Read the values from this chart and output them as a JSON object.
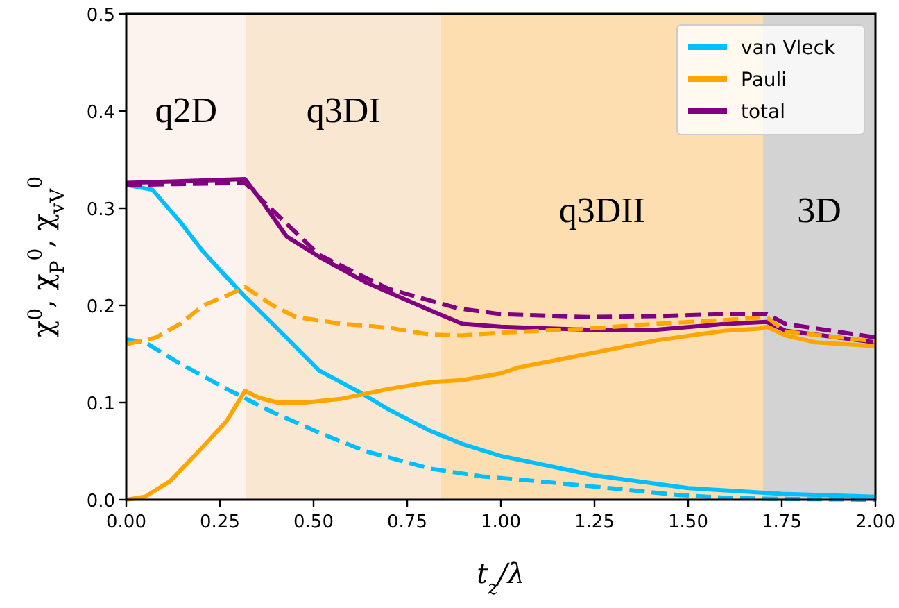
{
  "chart_data": {
    "type": "line",
    "xlabel": "t$_{z}$/λ",
    "ylabel": "χ$^{0}$, χ$_{P}$$^{0}$, χ$_{vV}$$^{0}$",
    "xlim": [
      0,
      2
    ],
    "ylim": [
      0,
      0.5
    ],
    "xticks": [
      {
        "value": 0,
        "label": "0.00"
      },
      {
        "value": 0.25,
        "label": "0.25"
      },
      {
        "value": 0.5,
        "label": "0.50"
      },
      {
        "value": 0.75,
        "label": "0.75"
      },
      {
        "value": 1,
        "label": "1.00"
      },
      {
        "value": 1.25,
        "label": "1.25"
      },
      {
        "value": 1.5,
        "label": "1.50"
      },
      {
        "value": 1.75,
        "label": "1.75"
      },
      {
        "value": 2,
        "label": "2.00"
      }
    ],
    "yticks": [
      {
        "value": 0,
        "label": "0.0"
      },
      {
        "value": 0.1,
        "label": "0.1"
      },
      {
        "value": 0.2,
        "label": "0.2"
      },
      {
        "value": 0.3,
        "label": "0.3"
      },
      {
        "value": 0.4,
        "label": "0.4"
      },
      {
        "value": 0.5,
        "label": "0.5"
      }
    ],
    "grid": false,
    "legend": "top right",
    "bands": [
      {
        "axis": "x",
        "from": 0,
        "to": 0.32,
        "label": "q2D",
        "color": "#fdf3ee"
      },
      {
        "axis": "x",
        "from": 0.32,
        "to": 0.84,
        "label": "q3DI",
        "color": "#f9e7d2"
      },
      {
        "axis": "x",
        "from": 0.84,
        "to": 1.7,
        "label": "q3DII",
        "color": "#fcdeb0"
      },
      {
        "axis": "x",
        "from": 1.7,
        "to": 2,
        "label": "3D",
        "color": "#d3d3d3"
      }
    ],
    "series": [
      {
        "name": "van Vleck",
        "color": "#00bfff",
        "line_style": "solid",
        "x": [
          0,
          0.07,
          0.144,
          0.206,
          0.268,
          0.317,
          0.391,
          0.453,
          0.515,
          0.626,
          0.7,
          0.811,
          0.9,
          1.0,
          1.25,
          1.5,
          1.75,
          2.0
        ],
        "values": [
          0.324,
          0.319,
          0.286,
          0.255,
          0.229,
          0.209,
          0.181,
          0.157,
          0.133,
          0.11,
          0.093,
          0.071,
          0.057,
          0.045,
          0.025,
          0.012,
          0.006,
          0.003
        ]
      },
      {
        "name": "Pauli",
        "color": "#ffa500",
        "line_style": "solid",
        "x": [
          0,
          0.05,
          0.117,
          0.206,
          0.268,
          0.317,
          0.354,
          0.404,
          0.478,
          0.576,
          0.7,
          0.811,
          0.897,
          1.0,
          1.046,
          1.231,
          1.416,
          1.6,
          1.69,
          1.71,
          1.76,
          1.84,
          2.0
        ],
        "values": [
          0,
          0.003,
          0.019,
          0.055,
          0.081,
          0.112,
          0.105,
          0.1,
          0.1,
          0.104,
          0.114,
          0.121,
          0.123,
          0.13,
          0.136,
          0.15,
          0.164,
          0.174,
          0.176,
          0.178,
          0.169,
          0.162,
          0.158
        ]
      },
      {
        "name": "total",
        "color": "#800080",
        "line_style": "solid",
        "x": [
          0,
          0.317,
          0.366,
          0.428,
          0.515,
          0.638,
          0.811,
          0.897,
          1.0,
          1.23,
          1.416,
          1.6,
          1.71,
          1.76,
          2.0
        ],
        "values": [
          0.326,
          0.33,
          0.305,
          0.271,
          0.25,
          0.224,
          0.195,
          0.181,
          0.178,
          0.175,
          0.175,
          0.181,
          0.183,
          0.174,
          0.162
        ]
      },
      {
        "color": "#00bfff",
        "line_style": "dashed",
        "x": [
          0,
          0.05,
          0.144,
          0.268,
          0.391,
          0.515,
          0.638,
          0.811,
          0.95,
          1.1,
          1.29,
          1.47,
          1.6,
          1.7,
          2.0
        ],
        "values": [
          0.165,
          0.162,
          0.14,
          0.114,
          0.09,
          0.069,
          0.05,
          0.032,
          0.024,
          0.019,
          0.012,
          0.005,
          0.002,
          0.001,
          0
        ]
      },
      {
        "color": "#ffa500",
        "line_style": "dashed",
        "x": [
          0,
          0.08,
          0.144,
          0.206,
          0.268,
          0.317,
          0.391,
          0.453,
          0.576,
          0.7,
          0.811,
          0.897,
          1.0,
          1.23,
          1.416,
          1.6,
          1.71,
          1.76,
          2.0
        ],
        "values": [
          0.16,
          0.167,
          0.181,
          0.2,
          0.21,
          0.219,
          0.2,
          0.188,
          0.181,
          0.177,
          0.17,
          0.169,
          0.172,
          0.176,
          0.181,
          0.185,
          0.188,
          0.173,
          0.163
        ]
      },
      {
        "color": "#800080",
        "line_style": "dashed",
        "x": [
          0,
          0.317,
          0.366,
          0.515,
          0.7,
          0.885,
          1.0,
          1.23,
          1.416,
          1.6,
          1.71,
          1.76,
          2.0
        ],
        "values": [
          0.324,
          0.326,
          0.307,
          0.252,
          0.217,
          0.197,
          0.191,
          0.188,
          0.189,
          0.191,
          0.191,
          0.181,
          0.167
        ]
      }
    ]
  }
}
